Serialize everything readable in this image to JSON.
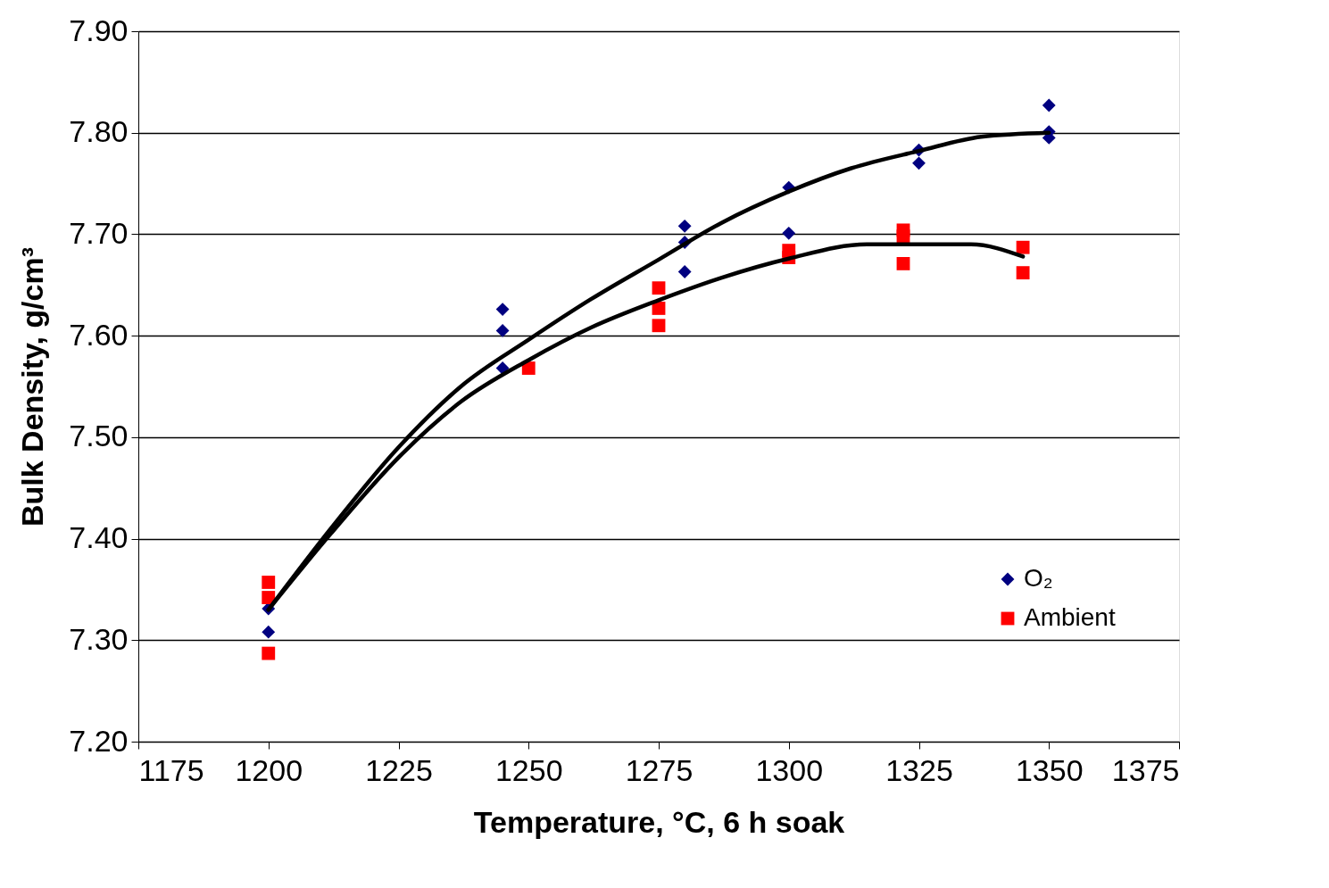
{
  "chart_data": {
    "type": "scatter",
    "xlabel": "Temperature, °C, 6 h soak",
    "ylabel": "Bulk Density, g/cm³",
    "xlim": [
      1175,
      1375
    ],
    "xticks": [
      1175,
      1200,
      1225,
      1250,
      1275,
      1300,
      1325,
      1350,
      1375
    ],
    "ylim": [
      7.2,
      7.9
    ],
    "yticks": [
      {
        "value": 7.2,
        "label": "7.20"
      },
      {
        "value": 7.3,
        "label": "7.30"
      },
      {
        "value": 7.4,
        "label": "7.40"
      },
      {
        "value": 7.5,
        "label": "7.50"
      },
      {
        "value": 7.6,
        "label": "7.60"
      },
      {
        "value": 7.7,
        "label": "7.70"
      },
      {
        "value": 7.8,
        "label": "7.80"
      },
      {
        "value": 7.9,
        "label": "7.90"
      }
    ],
    "grid": "y",
    "legend": "bottom right",
    "series": [
      {
        "name": "O₂",
        "marker": "diamond",
        "color": "#000080",
        "x": [
          1200,
          1200,
          1245,
          1245,
          1245,
          1280,
          1280,
          1280,
          1300,
          1300,
          1325,
          1325,
          1350,
          1350,
          1350
        ],
        "values": [
          7.331,
          7.308,
          7.626,
          7.605,
          7.568,
          7.708,
          7.692,
          7.663,
          7.746,
          7.701,
          7.783,
          7.77,
          7.827,
          7.801,
          7.795
        ]
      },
      {
        "name": "Ambient",
        "marker": "square",
        "color": "#ff0000",
        "x": [
          1200,
          1200,
          1200,
          1250,
          1275,
          1275,
          1275,
          1300,
          1300,
          1322,
          1322,
          1322,
          1345,
          1345
        ],
        "values": [
          7.357,
          7.342,
          7.287,
          7.568,
          7.647,
          7.627,
          7.61,
          7.684,
          7.677,
          7.704,
          7.698,
          7.671,
          7.687,
          7.662
        ]
      },
      {
        "type": "line",
        "line_style": "solid",
        "color": "#000000",
        "x": [
          1200,
          1212,
          1225,
          1237,
          1250,
          1262,
          1275,
          1287,
          1300,
          1312,
          1325,
          1337,
          1350
        ],
        "values": [
          7.33,
          7.41,
          7.49,
          7.55,
          7.596,
          7.636,
          7.675,
          7.711,
          7.742,
          7.765,
          7.782,
          7.796,
          7.8
        ]
      },
      {
        "type": "line",
        "line_style": "solid",
        "color": "#000000",
        "x": [
          1200,
          1212,
          1225,
          1237,
          1250,
          1262,
          1275,
          1287,
          1300,
          1315,
          1335,
          1345
        ],
        "values": [
          7.33,
          7.405,
          7.48,
          7.535,
          7.576,
          7.608,
          7.635,
          7.657,
          7.676,
          7.69,
          7.69,
          7.678
        ]
      }
    ]
  }
}
